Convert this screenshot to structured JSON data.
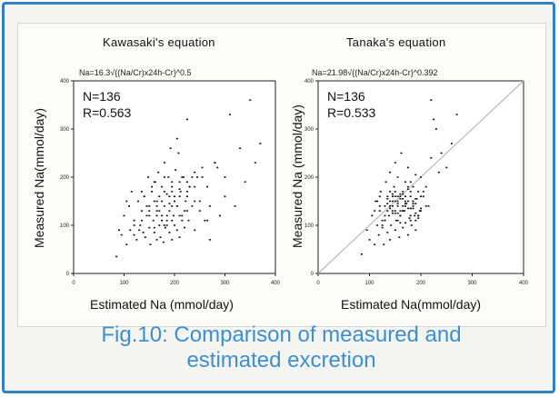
{
  "chart_data": [
    {
      "type": "scatter",
      "title": "Kawasaki's equation",
      "subtitle": "Na=16.3√{(Na/Cr)x24h-Cr}^0.5",
      "xlabel": "Estimated Na (mmol/day)",
      "ylabel": "Measured Na(mmol/day)",
      "xlim": [
        0,
        400
      ],
      "ylim": [
        0,
        400
      ],
      "xticks": [
        "0",
        "100",
        "200",
        "300",
        "400"
      ],
      "yticks": [
        "0",
        "100",
        "200",
        "300",
        "400"
      ],
      "annotations": [
        "N=136",
        "R=0.563"
      ],
      "diagonal": false,
      "x": [
        85,
        95,
        105,
        110,
        112,
        120,
        125,
        128,
        132,
        135,
        138,
        140,
        142,
        145,
        148,
        150,
        150,
        152,
        155,
        158,
        160,
        160,
        162,
        165,
        165,
        168,
        170,
        170,
        172,
        175,
        175,
        178,
        180,
        180,
        182,
        185,
        185,
        188,
        190,
        190,
        192,
        195,
        195,
        198,
        200,
        200,
        202,
        205,
        205,
        208,
        210,
        212,
        215,
        218,
        220,
        222,
        225,
        228,
        230,
        235,
        240,
        245,
        250,
        255,
        260,
        265,
        270,
        280,
        290,
        300,
        310,
        320,
        330,
        340,
        350,
        360,
        370,
        100,
        115,
        130,
        145,
        160,
        175,
        190,
        205,
        220,
        235,
        250,
        265,
        280,
        140,
        155,
        170,
        185,
        200,
        215,
        230,
        165,
        180,
        195,
        210,
        225,
        240,
        120,
        135,
        150,
        165,
        180,
        195,
        210,
        225,
        240,
        255,
        270,
        285,
        300,
        90,
        105,
        120,
        135,
        150,
        165,
        180,
        195,
        210,
        225,
        240,
        175,
        185,
        195,
        205,
        215,
        225,
        160,
        190,
        210
      ],
      "y": [
        35,
        80,
        60,
        140,
        90,
        110,
        70,
        150,
        100,
        130,
        85,
        160,
        75,
        120,
        200,
        95,
        140,
        60,
        170,
        110,
        85,
        150,
        190,
        70,
        130,
        210,
        100,
        160,
        75,
        180,
        120,
        65,
        140,
        230,
        95,
        165,
        110,
        200,
        85,
        145,
        260,
        70,
        180,
        120,
        100,
        160,
        215,
        90,
        140,
        250,
        75,
        170,
        120,
        200,
        95,
        150,
        320,
        110,
        180,
        140,
        90,
        200,
        130,
        220,
        110,
        180,
        70,
        230,
        120,
        200,
        330,
        140,
        260,
        190,
        360,
        230,
        270,
        120,
        170,
        90,
        140,
        190,
        110,
        160,
        280,
        130,
        200,
        150,
        110,
        230,
        160,
        180,
        130,
        100,
        150,
        200,
        180,
        120,
        170,
        140,
        190,
        160,
        210,
        80,
        110,
        130,
        150,
        100,
        170,
        120,
        190,
        150,
        200,
        140,
        220,
        160,
        90,
        150,
        100,
        170,
        120,
        140,
        200,
        110,
        160,
        130,
        180,
        150,
        120,
        190,
        140,
        110,
        170,
        95,
        130,
        175
      ]
    },
    {
      "type": "scatter",
      "title": "Tanaka's equation",
      "subtitle": "Na=21.98√{(Na/Cr)x24h-Cr}^0.392",
      "xlabel": "Estimated Na(mmol/day)",
      "ylabel": "Measured Na (mmol/day)",
      "xlim": [
        0,
        400
      ],
      "ylim": [
        0,
        400
      ],
      "xticks": [
        "0",
        "100",
        "200",
        "300",
        "400"
      ],
      "yticks": [
        "0",
        "100",
        "200",
        "300",
        "400"
      ],
      "annotations": [
        "N=136",
        "R=0.533"
      ],
      "diagonal": true,
      "x": [
        85,
        95,
        100,
        105,
        110,
        112,
        115,
        118,
        120,
        122,
        125,
        128,
        130,
        130,
        132,
        135,
        135,
        138,
        140,
        140,
        142,
        145,
        145,
        148,
        150,
        150,
        152,
        155,
        155,
        158,
        160,
        160,
        162,
        165,
        165,
        168,
        170,
        170,
        172,
        175,
        175,
        178,
        180,
        180,
        182,
        185,
        185,
        188,
        190,
        190,
        192,
        195,
        198,
        200,
        205,
        210,
        215,
        220,
        225,
        230,
        240,
        250,
        260,
        270,
        220,
        235,
        110,
        120,
        130,
        140,
        150,
        160,
        170,
        180,
        190,
        200,
        210,
        125,
        135,
        145,
        155,
        165,
        175,
        185,
        195,
        205,
        115,
        125,
        135,
        145,
        155,
        165,
        175,
        185,
        195,
        140,
        150,
        160,
        170,
        180,
        190,
        130,
        140,
        150,
        160,
        170,
        180,
        190,
        200,
        120,
        130,
        140,
        150,
        160,
        170,
        180,
        190,
        200,
        135,
        145,
        155,
        165,
        175,
        185,
        195,
        145,
        155,
        165,
        175,
        185,
        150,
        160,
        170,
        180,
        155,
        165
      ],
      "y": [
        40,
        90,
        70,
        120,
        60,
        150,
        100,
        80,
        130,
        170,
        95,
        60,
        140,
        110,
        190,
        85,
        160,
        120,
        70,
        210,
        100,
        150,
        130,
        180,
        90,
        230,
        110,
        140,
        200,
        75,
        160,
        120,
        250,
        95,
        170,
        130,
        105,
        190,
        145,
        80,
        220,
        115,
        160,
        135,
        100,
        180,
        140,
        120,
        205,
        90,
        155,
        170,
        130,
        200,
        160,
        180,
        140,
        240,
        320,
        300,
        250,
        220,
        270,
        330,
        360,
        210,
        130,
        160,
        110,
        140,
        170,
        120,
        150,
        190,
        110,
        160,
        140,
        100,
        130,
        160,
        110,
        140,
        180,
        150,
        120,
        170,
        150,
        110,
        145,
        165,
        125,
        155,
        175,
        135,
        115,
        135,
        160,
        105,
        145,
        170,
        125,
        120,
        150,
        130,
        165,
        140,
        110,
        155,
        130,
        140,
        110,
        170,
        150,
        130,
        160,
        120,
        145,
        135,
        155,
        125,
        145,
        165,
        135,
        150,
        120,
        140,
        160,
        130,
        150,
        145,
        125,
        155,
        140,
        135,
        150,
        130
      ]
    }
  ],
  "caption": {
    "line1": "Fig.10: Comparison of measured and",
    "line2": "estimated excretion"
  },
  "colors": {
    "frame": "#2f7fc9",
    "caption": "#3d8fd4",
    "points": "#111111"
  }
}
